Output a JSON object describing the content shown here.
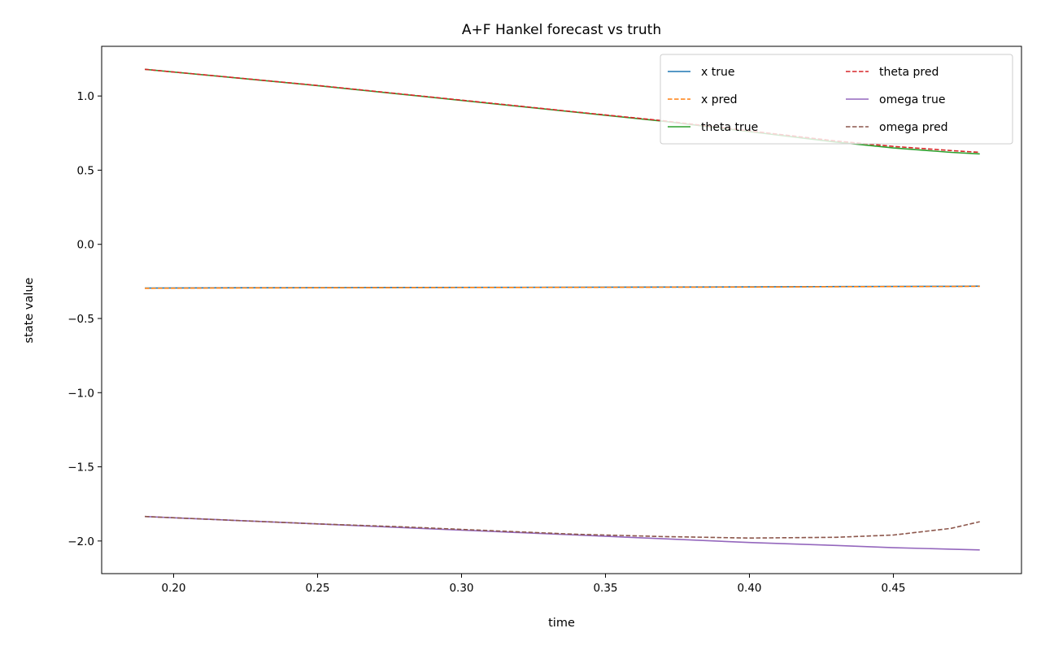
{
  "chart_data": {
    "type": "line",
    "title": "A+F Hankel forecast vs truth",
    "xlabel": "time",
    "ylabel": "state value",
    "xlim": [
      0.175,
      0.4945
    ],
    "ylim": [
      -2.22,
      1.335
    ],
    "xticks": [
      0.2,
      0.25,
      0.3,
      0.35,
      0.4,
      0.45
    ],
    "xtick_labels": [
      "0.20",
      "0.25",
      "0.30",
      "0.35",
      "0.40",
      "0.45"
    ],
    "yticks": [
      1.0,
      0.5,
      0.0,
      -0.5,
      -1.0,
      -1.5,
      -2.0
    ],
    "ytick_labels": [
      "1.0",
      "0.5",
      "0.0",
      "−0.5",
      "−1.0",
      "−1.5",
      "−2.0"
    ],
    "grid": false,
    "legend": {
      "placement": "top-right",
      "columns": 2
    },
    "x": [
      0.19,
      0.22,
      0.25,
      0.28,
      0.31,
      0.34,
      0.37,
      0.4,
      0.43,
      0.45,
      0.47,
      0.48
    ],
    "series": [
      {
        "name": "x true",
        "color": "#1f77b4",
        "dash": "solid",
        "values": [
          -0.295,
          -0.293,
          -0.292,
          -0.291,
          -0.29,
          -0.289,
          -0.288,
          -0.287,
          -0.285,
          -0.284,
          -0.283,
          -0.282
        ]
      },
      {
        "name": "x pred",
        "color": "#ff7f0e",
        "dash": "dashed",
        "values": [
          -0.296,
          -0.294,
          -0.293,
          -0.292,
          -0.291,
          -0.29,
          -0.289,
          -0.288,
          -0.286,
          -0.285,
          -0.284,
          -0.283
        ]
      },
      {
        "name": "theta true",
        "color": "#2ca02c",
        "dash": "solid",
        "values": [
          1.18,
          1.125,
          1.07,
          1.01,
          0.95,
          0.89,
          0.83,
          0.76,
          0.69,
          0.65,
          0.62,
          0.61
        ]
      },
      {
        "name": "theta pred",
        "color": "#d62728",
        "dash": "dashed",
        "values": [
          1.18,
          1.126,
          1.071,
          1.012,
          0.952,
          0.892,
          0.833,
          0.765,
          0.697,
          0.66,
          0.632,
          0.62
        ]
      },
      {
        "name": "omega true",
        "color": "#9467bd",
        "dash": "solid",
        "values": [
          -1.835,
          -1.86,
          -1.885,
          -1.91,
          -1.935,
          -1.96,
          -1.985,
          -2.01,
          -2.03,
          -2.045,
          -2.055,
          -2.06
        ]
      },
      {
        "name": "omega pred",
        "color": "#8c564b",
        "dash": "dashed",
        "values": [
          -1.835,
          -1.86,
          -1.885,
          -1.905,
          -1.93,
          -1.955,
          -1.97,
          -1.98,
          -1.975,
          -1.96,
          -1.915,
          -1.87
        ]
      }
    ]
  }
}
